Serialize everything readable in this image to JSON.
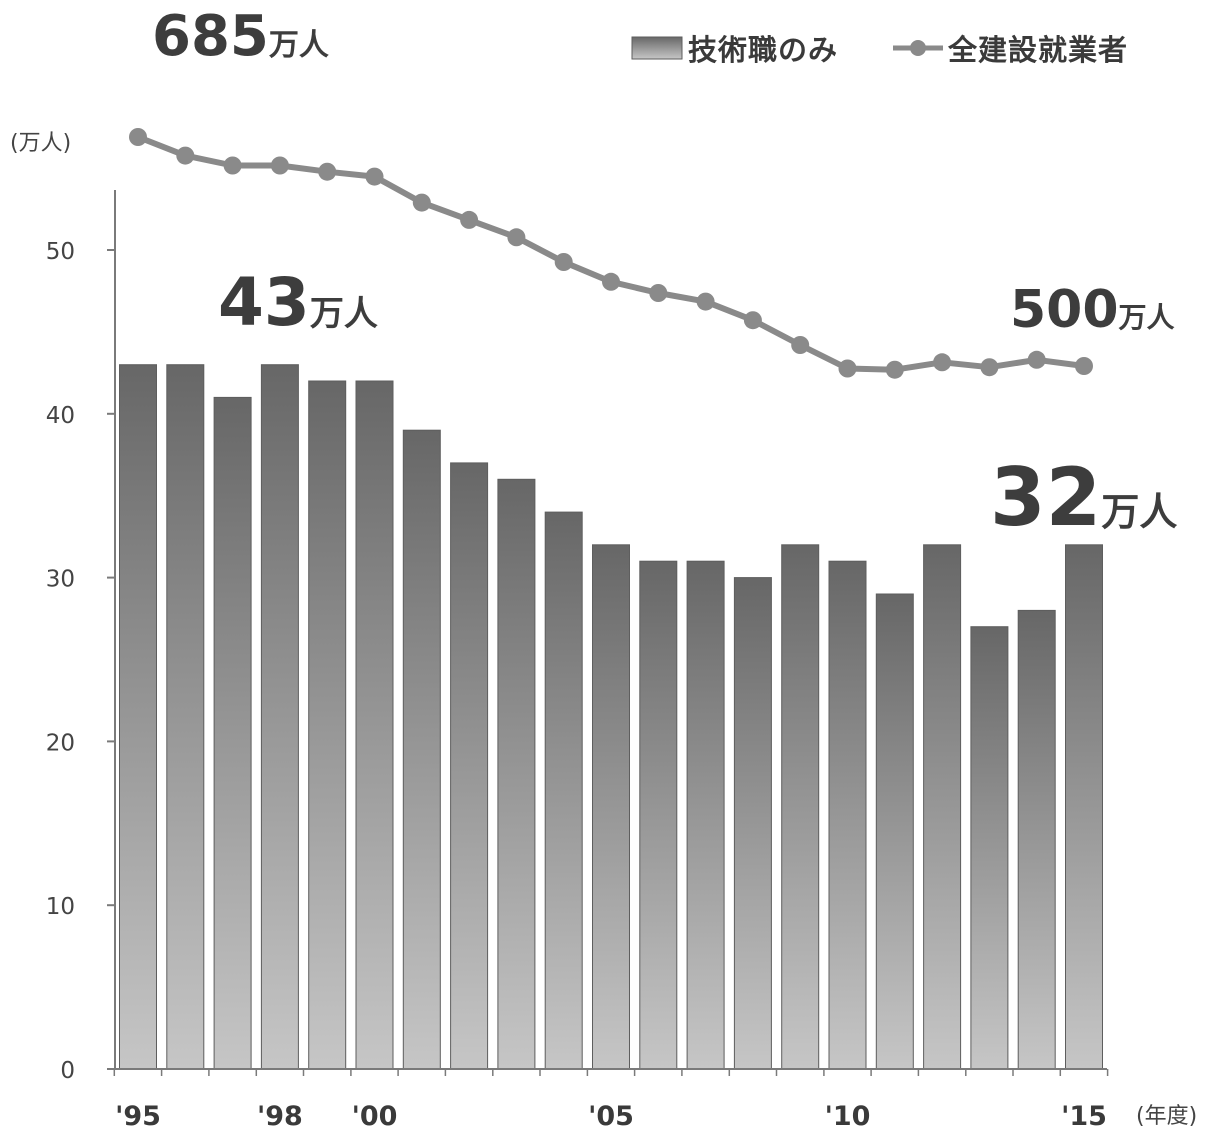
{
  "chart_data": {
    "type": "bar",
    "years": [
      1995,
      1996,
      1997,
      1998,
      1999,
      2000,
      2001,
      2002,
      2003,
      2004,
      2005,
      2006,
      2007,
      2008,
      2009,
      2010,
      2011,
      2012,
      2013,
      2014,
      2015
    ],
    "series": [
      {
        "name": "技術職のみ",
        "type": "bar",
        "values": [
          43,
          43,
          41,
          43,
          42,
          42,
          39,
          37,
          36,
          34,
          32,
          31,
          31,
          30,
          32,
          31,
          29,
          32,
          27,
          28,
          32
        ]
      },
      {
        "name": "全建設就業者",
        "type": "line",
        "values": [
          685,
          670,
          662,
          662,
          657,
          653,
          632,
          618,
          604,
          584,
          568,
          559,
          552,
          537,
          517,
          498,
          497,
          503,
          499,
          505,
          500
        ]
      }
    ],
    "x_tick_labels": [
      "'95",
      "'98",
      "'00",
      "'05",
      "'10",
      "'15"
    ],
    "x_tick_years": [
      1995,
      1998,
      2000,
      2005,
      2010,
      2015
    ],
    "y_ticks": [
      0,
      10,
      20,
      30,
      40,
      50
    ],
    "ylim": [
      0,
      53
    ],
    "ylabel": "(万人)",
    "xlabel": "(年度)",
    "legend_position": "top-right",
    "annotations": [
      {
        "number": "685",
        "unit": "万人"
      },
      {
        "number": "43",
        "unit": "万人"
      },
      {
        "number": "500",
        "unit": "万人"
      },
      {
        "number": "32",
        "unit": "万人"
      }
    ]
  },
  "colors": {
    "bar_top": "#676767",
    "bar_bottom": "#c6c6c6",
    "bar_edge": "#5e5e5e",
    "line": "#8a8a8a",
    "axis": "#7a7a7a",
    "text": "#3d3d3d"
  }
}
